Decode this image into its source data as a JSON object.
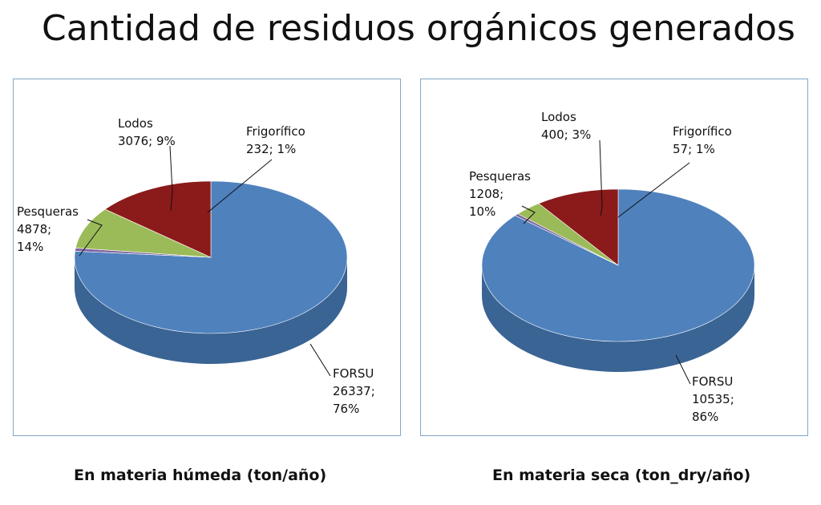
{
  "title": "Cantidad de residuos orgánicos generados",
  "chart_data": [
    {
      "type": "pie",
      "style": "3d",
      "caption": "En materia húmeda (ton/año)",
      "slices": [
        {
          "name": "FORSU",
          "value": 26337,
          "percent": "76%",
          "color": "#4f81bd",
          "side": "#3a6494"
        },
        {
          "name": "Frigorífico",
          "value": 232,
          "percent": "1%",
          "color": "#8064a2",
          "side": "#5e4a78"
        },
        {
          "name": "Lodos",
          "value": 3076,
          "percent": "9%",
          "color": "#9bbb59",
          "side": "#738d3f"
        },
        {
          "name": "Pesqueras",
          "value": 4878,
          "percent": "14%",
          "color": "#8b1a1a",
          "side": "#611010"
        }
      ],
      "labels": [
        {
          "lines": [
            "Lodos",
            "3076;  9%"
          ]
        },
        {
          "lines": [
            "Frigorífico",
            "232;   1%"
          ]
        },
        {
          "lines": [
            "Pesqueras",
            "4878;",
            "14%"
          ]
        },
        {
          "lines": [
            "FORSU",
            "26337;",
            "76%"
          ]
        }
      ]
    },
    {
      "type": "pie",
      "style": "3d",
      "caption": "En materia seca (ton_dry/año)",
      "slices": [
        {
          "name": "FORSU",
          "value": 10535,
          "percent": "86%",
          "color": "#4f81bd",
          "side": "#3a6494"
        },
        {
          "name": "Frigorífico",
          "value": 57,
          "percent": "1%",
          "color": "#8064a2",
          "side": "#5e4a78"
        },
        {
          "name": "Lodos",
          "value": 400,
          "percent": "3%",
          "color": "#9bbb59",
          "side": "#738d3f"
        },
        {
          "name": "Pesqueras",
          "value": 1208,
          "percent": "10%",
          "color": "#8b1a1a",
          "side": "#611010"
        }
      ],
      "labels": [
        {
          "lines": [
            "Lodos",
            "400;   3%"
          ]
        },
        {
          "lines": [
            "Frigorífico",
            "57;   1%"
          ]
        },
        {
          "lines": [
            "Pesqueras",
            "1208;",
            "10%"
          ]
        },
        {
          "lines": [
            "FORSU",
            "10535;",
            "86%"
          ]
        }
      ]
    }
  ]
}
